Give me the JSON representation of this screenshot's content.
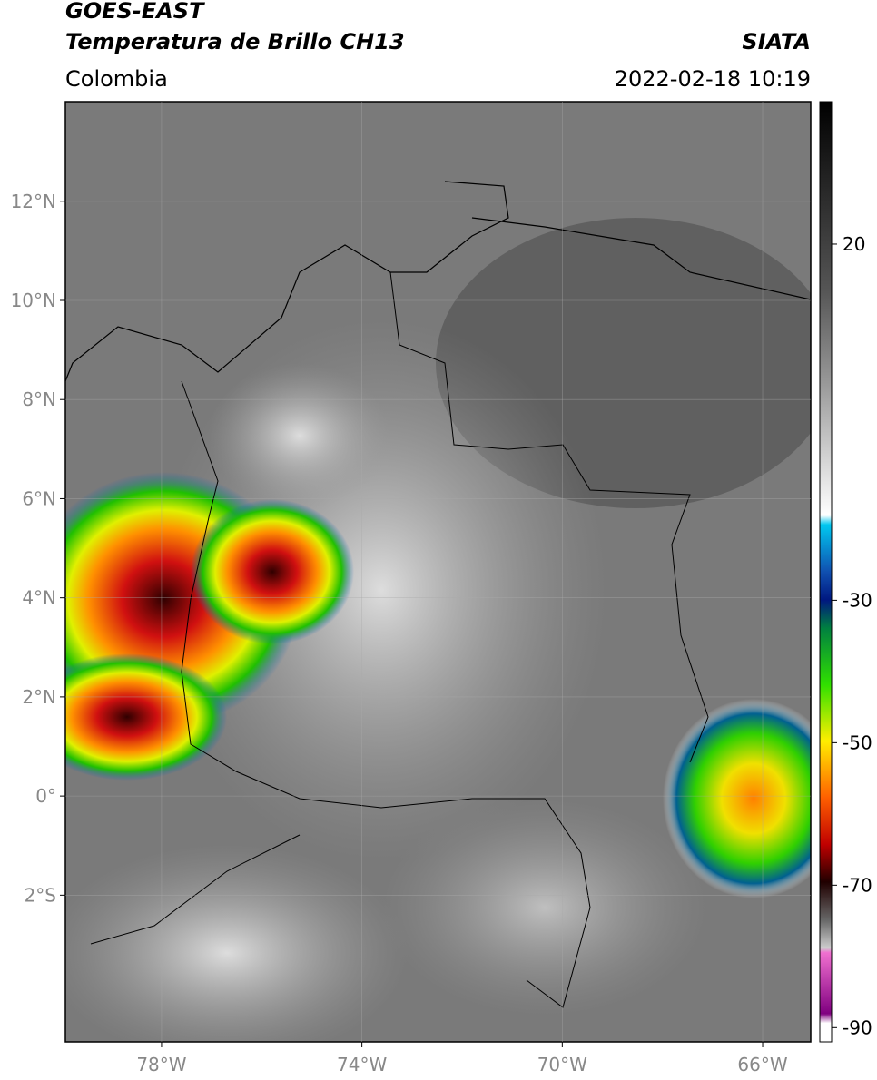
{
  "map": {
    "title": "GOES-EAST",
    "subtitle": "Temperatura de Brillo CH13",
    "source": "SIATA",
    "region": "Colombia",
    "datetime": "2022-02-18 10:19",
    "xlim": [
      -79.92,
      -65.04
    ],
    "ylim": [
      -4.96,
      14.01
    ],
    "xticks": [
      {
        "value": -78,
        "label": "78°W"
      },
      {
        "value": -74,
        "label": "74°W"
      },
      {
        "value": -70,
        "label": "70°W"
      },
      {
        "value": -66,
        "label": "66°W"
      }
    ],
    "yticks": [
      {
        "value": 12,
        "label": "12°N"
      },
      {
        "value": 10,
        "label": "10°N"
      },
      {
        "value": 8,
        "label": "8°N"
      },
      {
        "value": 6,
        "label": "6°N"
      },
      {
        "value": 4,
        "label": "4°N"
      },
      {
        "value": 2,
        "label": "2°N"
      },
      {
        "value": 0,
        "label": "0°"
      },
      {
        "value": -2,
        "label": "2°S"
      }
    ],
    "clim": [
      -92,
      40
    ],
    "cticks": [
      20,
      -30,
      -50,
      -70,
      -90
    ],
    "grid": true
  }
}
